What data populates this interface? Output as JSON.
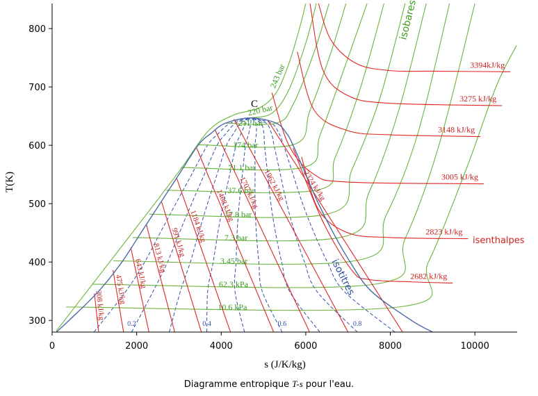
{
  "chart_data": {
    "type": "ts-diagram",
    "xlabel": "s (J/K/kg)",
    "ylabel": "T(K)",
    "caption": [
      "Diagramme entropique",
      "T-s",
      "pour l'eau."
    ],
    "annotations": {
      "critical": "C",
      "isobars": "isobares",
      "isenthalps": "isenthalpes",
      "quality": "isotitres"
    },
    "xlim": [
      0,
      11000
    ],
    "ylim": [
      280,
      843
    ],
    "xticks": [
      0,
      2000,
      4000,
      6000,
      8000,
      10000
    ],
    "yticks": [
      300,
      400,
      500,
      600,
      700,
      800
    ],
    "saturation": {
      "color": "#4a6aa8",
      "s": [
        100,
        400,
        1100,
        1650,
        2100,
        2550,
        3000,
        3450,
        3750,
        4100,
        4700,
        5300,
        5550,
        5700,
        6000,
        6300,
        6650,
        7050,
        7550,
        8500,
        9000
      ],
      "T": [
        280,
        300,
        350,
        400,
        450,
        500,
        550,
        600,
        620,
        638,
        647,
        638,
        620,
        600,
        550,
        500,
        450,
        400,
        350,
        300,
        280
      ]
    },
    "isobars": {
      "color": "#6cb33a",
      "label_color": "#3a9a1e",
      "lines": [
        {
          "label": "243 bar",
          "s": [
            100,
            2000,
            3000,
            3700,
            4300,
            4900,
            5300,
            5600,
            5850,
            6000
          ],
          "T": [
            282,
            460,
            555,
            625,
            652,
            664,
            690,
            740,
            800,
            843
          ]
        },
        {
          "label": "220 bar",
          "s": [
            4700,
            5200,
            5600,
            6000,
            6250
          ],
          "T": [
            647,
            655,
            695,
            775,
            843
          ]
        },
        {
          "label": "211 bar",
          "s": [
            4100,
            5300,
            5700,
            6200,
            6550
          ],
          "T": [
            638,
            638,
            670,
            760,
            843
          ]
        },
        {
          "label": "174 bar",
          "s": [
            3450,
            5700,
            6100,
            6600,
            6950
          ],
          "T": [
            601,
            601,
            660,
            760,
            843
          ]
        },
        {
          "label": "71.1 bar",
          "s": [
            3050,
            5930,
            6350,
            6950,
            7450
          ],
          "T": [
            562,
            562,
            620,
            740,
            843
          ]
        },
        {
          "label": "37.6 bar",
          "s": [
            2700,
            6240,
            6700,
            7300,
            7850
          ],
          "T": [
            523,
            523,
            580,
            700,
            843
          ]
        },
        {
          "label": "17.8 bar",
          "s": [
            2300,
            6500,
            7100,
            7750,
            8350
          ],
          "T": [
            482,
            482,
            560,
            680,
            843
          ]
        },
        {
          "label": "7.3 bar",
          "s": [
            1900,
            6800,
            7500,
            8200,
            8850
          ],
          "T": [
            442,
            442,
            520,
            660,
            843
          ]
        },
        {
          "label": "3.45 bar",
          "s": [
            1450,
            7150,
            7900,
            8650,
            9400
          ],
          "T": [
            402,
            402,
            480,
            620,
            843
          ]
        },
        {
          "label": "62.3 kPa",
          "s": [
            950,
            7630,
            8350,
            9150,
            10000
          ],
          "T": [
            362,
            362,
            440,
            600,
            843
          ]
        },
        {
          "label": "10.6 kPa",
          "s": [
            330,
            8200,
            8900,
            9800,
            10500,
            10985
          ],
          "T": [
            323,
            323,
            400,
            560,
            700,
            771
          ]
        }
      ]
    },
    "isenthalps": {
      "color": "#e02424",
      "label_color": "#c81e1e",
      "lines": [
        {
          "label": "3394kJ/kg",
          "s": [
            6300,
            6600,
            7200,
            8000,
            9000,
            10840
          ],
          "T": [
            843,
            780,
            740,
            728,
            727,
            726
          ]
        },
        {
          "label": "3275 kJ/kg",
          "s": [
            6100,
            6400,
            7000,
            8000,
            10640
          ],
          "T": [
            843,
            730,
            685,
            672,
            668
          ]
        },
        {
          "label": "3148 kJ/kg",
          "s": [
            5800,
            6200,
            7000,
            8000,
            10130
          ],
          "T": [
            760,
            660,
            625,
            618,
            615
          ]
        },
        {
          "label": "3005 kJ/kg",
          "s": [
            5200,
            5600,
            6200,
            7000,
            10210
          ],
          "T": [
            690,
            600,
            550,
            537,
            534
          ]
        },
        {
          "label": "2823 kJ/kg",
          "s": [
            5900,
            6300,
            7000,
            8000,
            9840
          ],
          "T": [
            580,
            490,
            450,
            442,
            440
          ]
        },
        {
          "label": "2682 kJ/kg",
          "s": [
            5700,
            6400,
            7100,
            7500,
            8500,
            9475
          ],
          "T": [
            595,
            470,
            385,
            370,
            366,
            364
          ]
        },
        {
          "label": "2324 kJ/kg",
          "s": [
            5100,
            8290
          ],
          "T": [
            643,
            280
          ]
        },
        {
          "label": "1962 kJ/kg",
          "s": [
            4300,
            7000
          ],
          "T": [
            645,
            280
          ]
        },
        {
          "label": "1707 kJ/kg",
          "s": [
            3850,
            6090
          ],
          "T": [
            627,
            280
          ]
        },
        {
          "label": "1468 kJ/kg",
          "s": [
            3420,
            5240
          ],
          "T": [
            595,
            280
          ]
        },
        {
          "label": "1184 kJ/kg",
          "s": [
            2950,
            4220
          ],
          "T": [
            543,
            280
          ]
        },
        {
          "label": "991 kJ/kg",
          "s": [
            2590,
            3530
          ],
          "T": [
            503,
            280
          ]
        },
        {
          "label": "813 kJ/kg",
          "s": [
            2230,
            2900
          ],
          "T": [
            464,
            280
          ]
        },
        {
          "label": "643 kJ/kg",
          "s": [
            1860,
            2290
          ],
          "T": [
            425,
            280
          ]
        },
        {
          "label": "475 kJ/kg",
          "s": [
            1440,
            1690
          ],
          "T": [
            386,
            280
          ]
        },
        {
          "label": "308 kJ/kg",
          "s": [
            1000,
            1100
          ],
          "T": [
            346,
            280
          ]
        }
      ]
    },
    "quality": {
      "color": "#2f4fa8",
      "T": [
        280,
        350,
        400,
        450,
        500,
        550,
        600,
        620,
        638,
        647
      ],
      "lines": [
        {
          "s": [
            990,
            1745,
            2190,
            2555,
            2925,
            3300,
            3675,
            3930,
            4220,
            4700
          ]
        },
        {
          "label": "0.2",
          "s": [
            1880,
            2390,
            2730,
            3010,
            3300,
            3600,
            3900,
            4110,
            4340,
            4700
          ]
        },
        {
          "s": [
            2770,
            3035,
            3270,
            3465,
            3675,
            3900,
            4125,
            4290,
            4460,
            4700
          ]
        },
        {
          "label": "0.4",
          "s": [
            3660,
            3680,
            3810,
            3920,
            4050,
            4200,
            4350,
            4470,
            4580,
            4700
          ]
        },
        {
          "s": [
            4550,
            4325,
            4350,
            4375,
            4425,
            4500,
            4575,
            4650,
            4700,
            4700
          ]
        },
        {
          "label": "0.6",
          "s": [
            5440,
            4970,
            4890,
            4830,
            4800,
            4800,
            4800,
            4830,
            4820,
            4700
          ]
        },
        {
          "s": [
            6330,
            5615,
            5430,
            5285,
            5175,
            5100,
            5025,
            5010,
            4940,
            4700
          ]
        },
        {
          "label": "0.8",
          "s": [
            7220,
            6260,
            5970,
            5740,
            5550,
            5400,
            5250,
            5190,
            5060,
            4700
          ]
        },
        {
          "s": [
            8110,
            6905,
            6510,
            6195,
            5925,
            5700,
            5475,
            5370,
            5180,
            4700
          ]
        }
      ]
    }
  }
}
